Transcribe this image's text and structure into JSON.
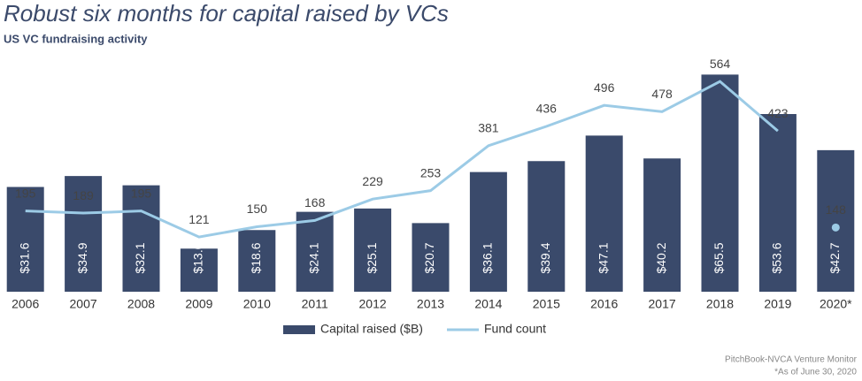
{
  "chart_data": {
    "type": "combo",
    "title": "Robust six months for capital raised by VCs",
    "subtitle": "US VC fundraising activity",
    "categories": [
      "2006",
      "2007",
      "2008",
      "2009",
      "2010",
      "2011",
      "2012",
      "2013",
      "2014",
      "2015",
      "2016",
      "2017",
      "2018",
      "2019",
      "2020*"
    ],
    "series": [
      {
        "name": "Capital raised ($B)",
        "type": "bar",
        "color": "#3a4a6b",
        "values": [
          31.6,
          34.9,
          32.1,
          13.0,
          18.6,
          24.1,
          25.1,
          20.7,
          36.1,
          39.4,
          47.1,
          40.2,
          65.5,
          53.6,
          42.7
        ],
        "value_labels": [
          "$31.6",
          "$34.9",
          "$32.1",
          "$13.0",
          "$18.6",
          "$24.1",
          "$25.1",
          "$20.7",
          "$36.1",
          "$39.4",
          "$47.1",
          "$40.2",
          "$65.5",
          "$53.6",
          "$42.7"
        ]
      },
      {
        "name": "Fund count",
        "type": "line",
        "axis": "y2",
        "color": "#9ccbe6",
        "values": [
          195,
          189,
          195,
          121,
          150,
          168,
          229,
          253,
          381,
          436,
          496,
          478,
          564,
          423,
          148
        ]
      }
    ],
    "ylim": [
      0,
      72
    ],
    "y2lim": [
      -35,
      645
    ],
    "legend": "bottom",
    "source": "PitchBook-NVCA Venture Monitor",
    "footnote": "*As of June 30, 2020"
  }
}
